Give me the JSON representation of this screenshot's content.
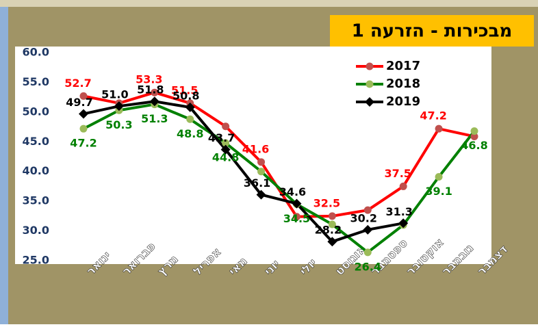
{
  "chart_data": {
    "type": "line",
    "title": "מבכירות - הזרעה 1",
    "categories": [
      "ינואר",
      "פברואר",
      "מרץ",
      "אפריל",
      "מאי",
      "יוני",
      "יולי",
      "אוגוסט",
      "ספטמבר",
      "אוקטובר",
      "נובמבר",
      "דצמבר"
    ],
    "series": [
      {
        "name": "2017",
        "color": "#ff0000",
        "marker_color": "#c0504d",
        "marker": "circle",
        "values": [
          52.7,
          51.5,
          53.3,
          51.5,
          47.6,
          41.6,
          32.4,
          32.5,
          33.5,
          37.5,
          47.2,
          45.9
        ],
        "value_labels": [
          "52.7",
          null,
          "53.3",
          "51.5",
          null,
          "41.6",
          null,
          "32.5",
          null,
          "37.5",
          "47.2",
          null
        ]
      },
      {
        "name": "2018",
        "color": "#008000",
        "marker_color": "#9bbb59",
        "marker": "circle",
        "values": [
          47.2,
          50.3,
          51.3,
          48.8,
          44.8,
          40.0,
          34.5,
          31.1,
          26.4,
          31.0,
          39.1,
          46.8
        ],
        "value_labels": [
          "47.2",
          "50.3",
          "51.3",
          "48.8",
          "44.8",
          null,
          "34.5",
          null,
          "26.4",
          null,
          "39.1",
          "46.8"
        ]
      },
      {
        "name": "2019",
        "color": "#000000",
        "marker_color": "#000000",
        "marker": "diamond",
        "values": [
          49.7,
          51.0,
          51.8,
          50.8,
          43.7,
          36.1,
          34.6,
          28.2,
          30.2,
          31.3,
          null,
          null
        ],
        "value_labels": [
          "49.7",
          "51.0",
          "51.8",
          "50.8",
          "43.7",
          "36.1",
          "34.6",
          "28.2",
          "30.2",
          "31.3",
          null,
          null
        ]
      }
    ],
    "ylim": [
      25,
      60
    ],
    "yticks": [
      {
        "value": 25,
        "label": "25.0"
      },
      {
        "value": 30,
        "label": "30.0"
      },
      {
        "value": 35,
        "label": "35.0"
      },
      {
        "value": 40,
        "label": "40.0"
      },
      {
        "value": 45,
        "label": "45.0"
      },
      {
        "value": 50,
        "label": "50.0"
      },
      {
        "value": 55,
        "label": "55.0"
      },
      {
        "value": 60,
        "label": "60.0"
      }
    ],
    "grid": false,
    "legend": "top-right"
  }
}
